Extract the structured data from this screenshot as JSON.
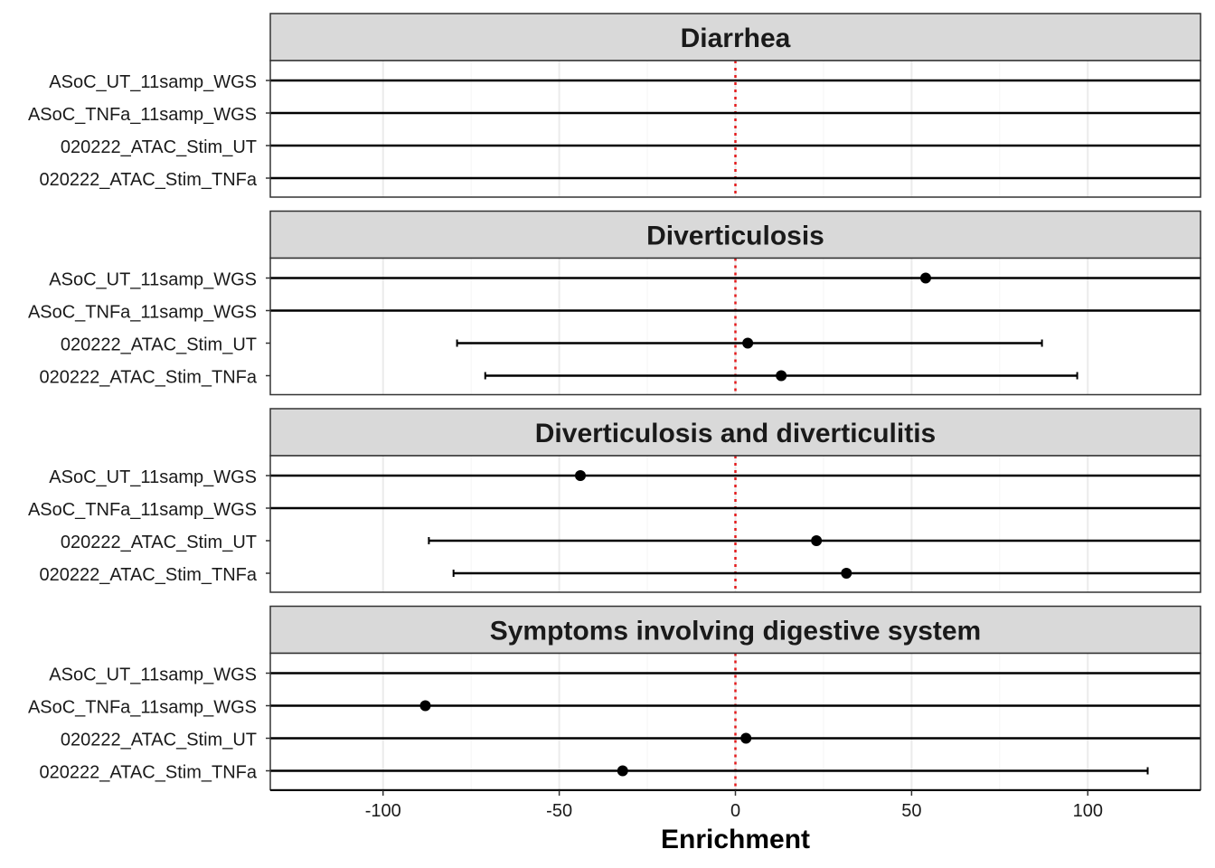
{
  "chart_data": {
    "type": "forest",
    "xlabel": "Enrichment",
    "xlim": [
      -132,
      132
    ],
    "xticks": [
      -100,
      -50,
      0,
      50,
      100
    ],
    "xtick_labels": [
      "-100",
      "-50",
      "0",
      "50",
      "100"
    ],
    "reference_line": {
      "x": 0,
      "color": "#e31a1c",
      "style": "dotted"
    },
    "rows": [
      "ASoC_UT_11samp_WGS",
      "ASoC_TNFa_11samp_WGS",
      "020222_ATAC_Stim_UT",
      "020222_ATAC_Stim_TNFa"
    ],
    "grid": true,
    "panels": [
      {
        "title": "Diarrhea",
        "points": [
          {
            "row": "ASoC_UT_11samp_WGS",
            "estimate": null,
            "lower": null,
            "upper": null,
            "full_span": true
          },
          {
            "row": "ASoC_TNFa_11samp_WGS",
            "estimate": null,
            "lower": null,
            "upper": null,
            "full_span": true
          },
          {
            "row": "020222_ATAC_Stim_UT",
            "estimate": null,
            "lower": null,
            "upper": null,
            "full_span": true
          },
          {
            "row": "020222_ATAC_Stim_TNFa",
            "estimate": null,
            "lower": null,
            "upper": null,
            "full_span": true
          }
        ]
      },
      {
        "title": "Diverticulosis",
        "points": [
          {
            "row": "ASoC_UT_11samp_WGS",
            "estimate": 54,
            "lower": null,
            "upper": null,
            "full_span": true
          },
          {
            "row": "ASoC_TNFa_11samp_WGS",
            "estimate": null,
            "lower": null,
            "upper": null,
            "full_span": true
          },
          {
            "row": "020222_ATAC_Stim_UT",
            "estimate": 3.5,
            "lower": -79,
            "upper": 87,
            "full_span": false
          },
          {
            "row": "020222_ATAC_Stim_TNFa",
            "estimate": 13,
            "lower": -71,
            "upper": 97,
            "full_span": false
          }
        ]
      },
      {
        "title": "Diverticulosis and diverticulitis",
        "points": [
          {
            "row": "ASoC_UT_11samp_WGS",
            "estimate": -44,
            "lower": null,
            "upper": null,
            "full_span": true
          },
          {
            "row": "ASoC_TNFa_11samp_WGS",
            "estimate": null,
            "lower": null,
            "upper": null,
            "full_span": true
          },
          {
            "row": "020222_ATAC_Stim_UT",
            "estimate": 23,
            "lower": -87,
            "upper": null,
            "full_span": false
          },
          {
            "row": "020222_ATAC_Stim_TNFa",
            "estimate": 31.5,
            "lower": -80,
            "upper": null,
            "full_span": false
          }
        ]
      },
      {
        "title": "Symptoms involving digestive system",
        "points": [
          {
            "row": "ASoC_UT_11samp_WGS",
            "estimate": null,
            "lower": null,
            "upper": null,
            "full_span": true
          },
          {
            "row": "ASoC_TNFa_11samp_WGS",
            "estimate": -88,
            "lower": null,
            "upper": null,
            "full_span": true
          },
          {
            "row": "020222_ATAC_Stim_UT",
            "estimate": 3,
            "lower": null,
            "upper": null,
            "full_span": true
          },
          {
            "row": "020222_ATAC_Stim_TNFa",
            "estimate": -32,
            "lower": null,
            "upper": 117,
            "full_span": false
          }
        ]
      }
    ]
  }
}
